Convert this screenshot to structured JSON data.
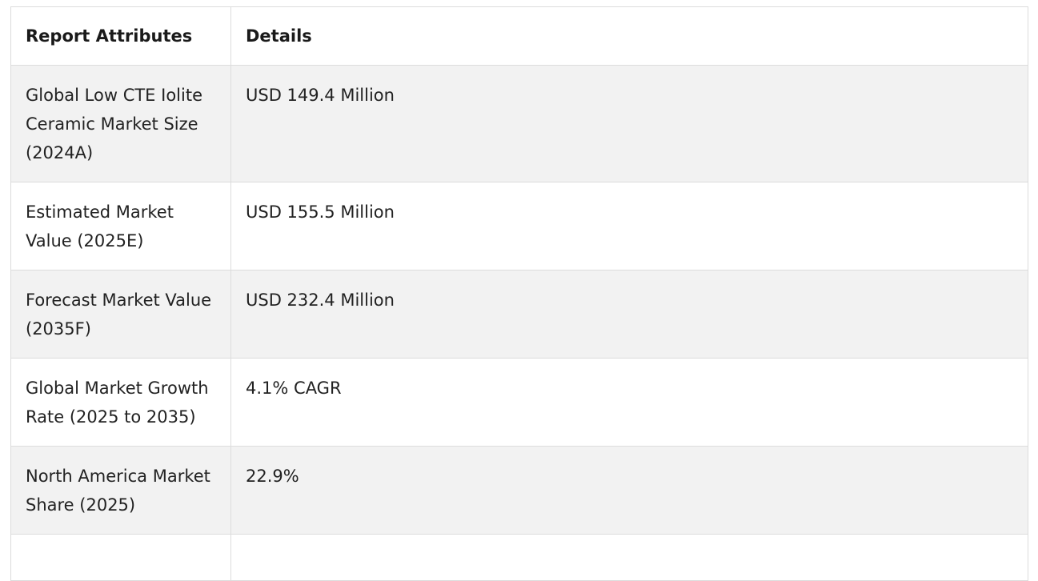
{
  "table": {
    "headers": [
      "Report Attributes",
      "Details"
    ],
    "rows": [
      {
        "attribute": "Global Low CTE Iolite Ceramic Market Size (2024A)",
        "detail": "USD 149.4 Million"
      },
      {
        "attribute": "Estimated Market Value (2025E)",
        "detail": "USD 155.5 Million"
      },
      {
        "attribute": "Forecast Market Value (2035F)",
        "detail": "USD 232.4 Million"
      },
      {
        "attribute": "Global Market Growth Rate (2025 to 2035)",
        "detail": "4.1% CAGR"
      },
      {
        "attribute": "North America Market Share (2025)",
        "detail": "22.9%"
      },
      {
        "attribute": "",
        "detail": ""
      }
    ]
  }
}
